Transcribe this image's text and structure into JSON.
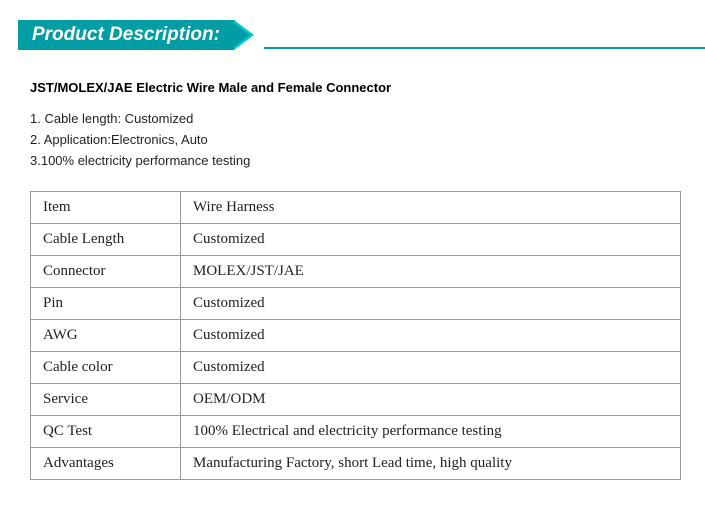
{
  "header": {
    "label": "Product Description:"
  },
  "title": "JST/MOLEX/JAE Electric Wire Male and Female Connector",
  "bullets": [
    "1. Cable length: Customized",
    "2. Application:Electronics, Auto",
    "3.100% electricity performance testing"
  ],
  "table": {
    "rows": [
      {
        "k": "Item",
        "v": "Wire Harness"
      },
      {
        "k": "Cable Length",
        "v": "Customized"
      },
      {
        "k": "Connector",
        "v": "MOLEX/JST/JAE"
      },
      {
        "k": "Pin",
        "v": "Customized"
      },
      {
        "k": "AWG",
        "v": "Customized"
      },
      {
        "k": "Cable color",
        "v": "Customized"
      },
      {
        "k": "Service",
        "v": "OEM/ODM"
      },
      {
        "k": "QC Test",
        "v": "100% Electrical and electricity performance testing"
      },
      {
        "k": "Advantages",
        "v": "Manufacturing Factory, short Lead time, high quality"
      }
    ]
  },
  "colors": {
    "accent": "#009da5",
    "accent_light": "#00c9d3",
    "border": "#999999",
    "text": "#222222"
  }
}
